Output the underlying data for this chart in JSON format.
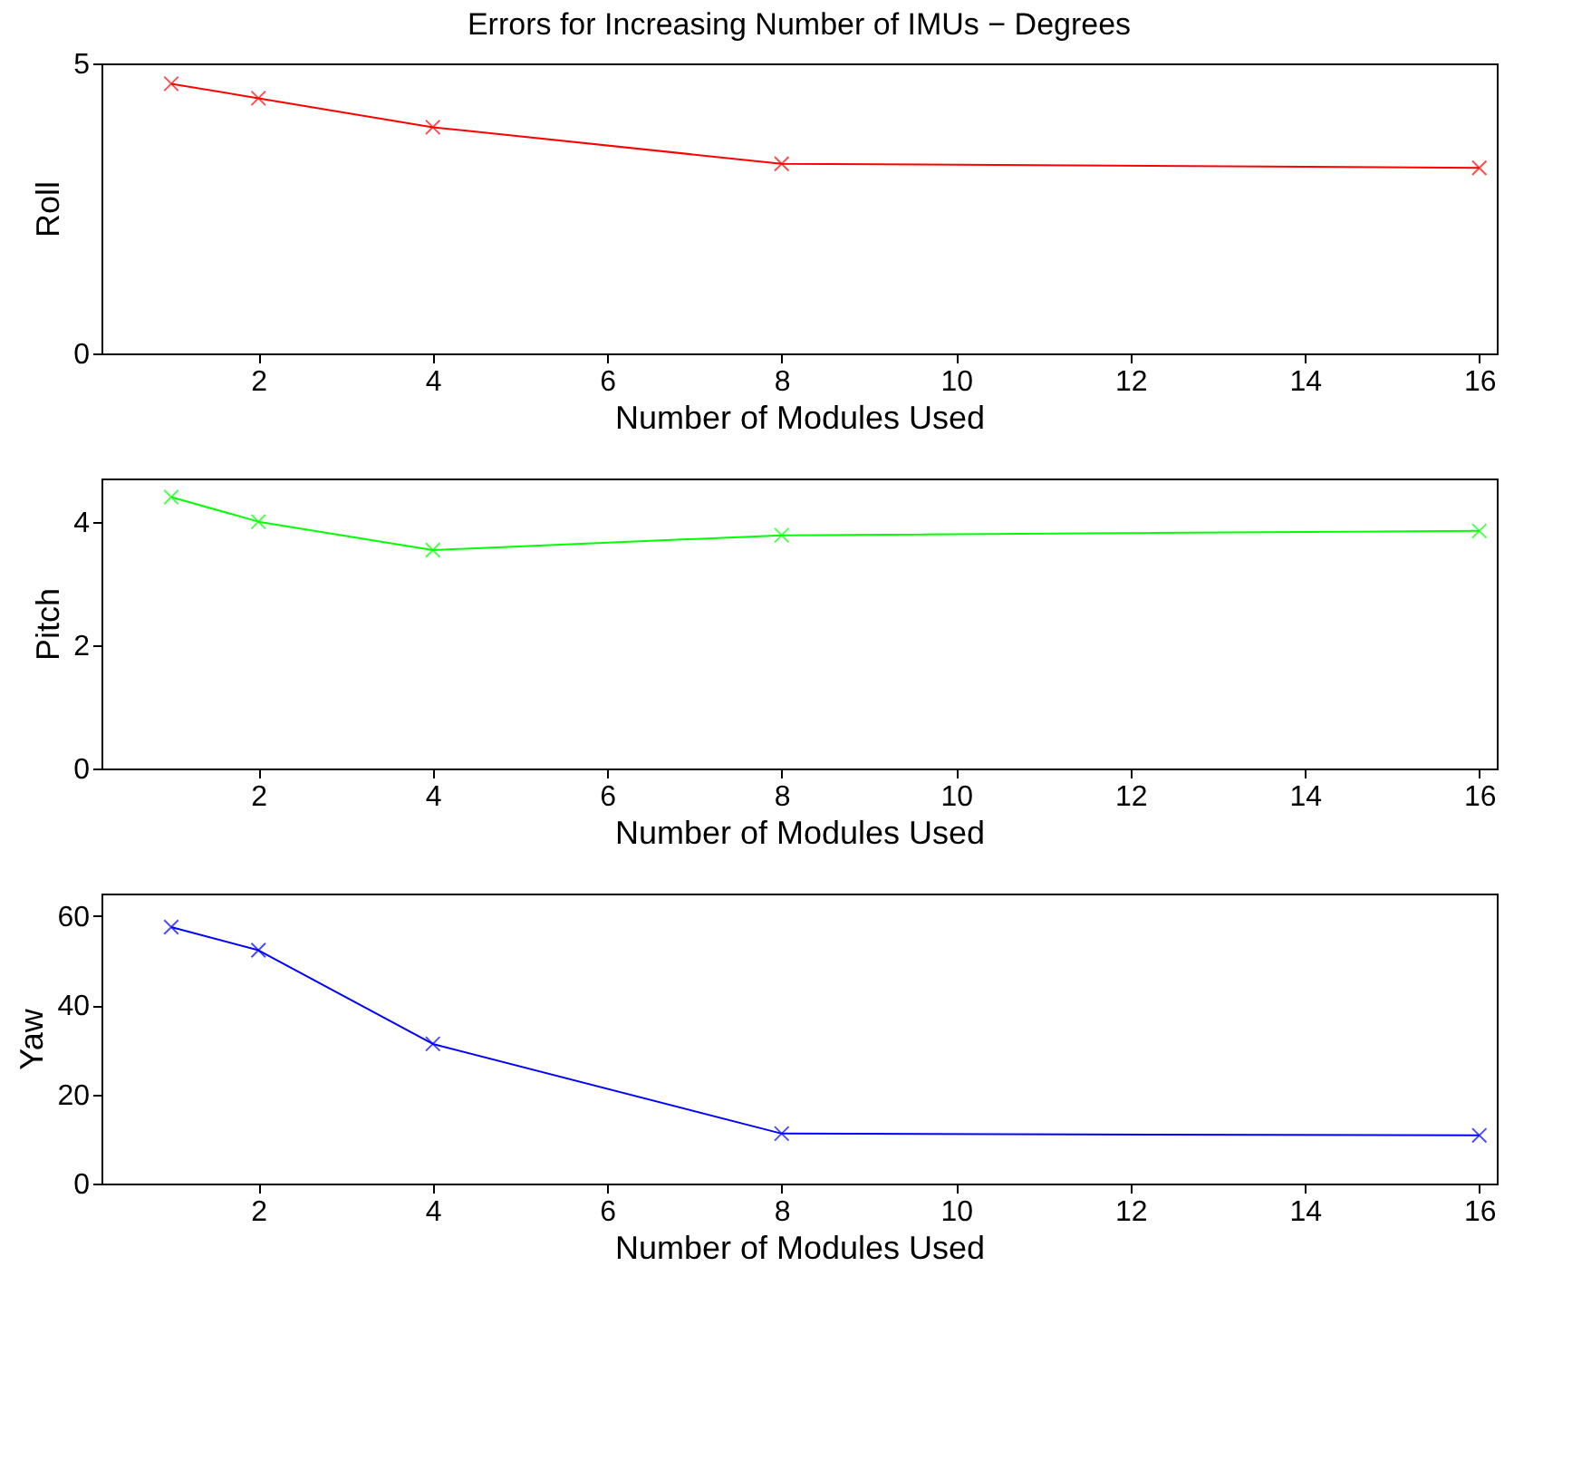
{
  "chart_data": [
    {
      "type": "line",
      "title": "Errors for Increasing Number of IMUs − Degrees",
      "xlabel": "Number of Modules Used",
      "ylabel": "Roll",
      "x": [
        1,
        2,
        4,
        8,
        16
      ],
      "xlim": [
        0.2,
        16.2
      ],
      "xticks": [
        2,
        4,
        6,
        8,
        10,
        12,
        14,
        16
      ],
      "ylim": [
        0,
        5
      ],
      "yticks": [
        0,
        5
      ],
      "grid": false,
      "marker": "cross",
      "series": [
        {
          "color": "#ff0000",
          "values": [
            4.65,
            4.4,
            3.9,
            3.27,
            3.2
          ]
        }
      ]
    },
    {
      "type": "line",
      "xlabel": "Number of Modules Used",
      "ylabel": "Pitch",
      "x": [
        1,
        2,
        4,
        8,
        16
      ],
      "xlim": [
        0.2,
        16.2
      ],
      "xticks": [
        2,
        4,
        6,
        8,
        10,
        12,
        14,
        16
      ],
      "ylim": [
        0,
        4.7
      ],
      "yticks": [
        0,
        2,
        4
      ],
      "grid": false,
      "marker": "cross",
      "series": [
        {
          "color": "#00ff00",
          "values": [
            4.4,
            4.0,
            3.54,
            3.78,
            3.85
          ]
        }
      ]
    },
    {
      "type": "line",
      "xlabel": "Number of Modules Used",
      "ylabel": "Yaw",
      "x": [
        1,
        2,
        4,
        8,
        16
      ],
      "xlim": [
        0.2,
        16.2
      ],
      "xticks": [
        2,
        4,
        6,
        8,
        10,
        12,
        14,
        16
      ],
      "ylim": [
        0,
        65
      ],
      "yticks": [
        0,
        20,
        40,
        60
      ],
      "grid": false,
      "marker": "cross",
      "series": [
        {
          "color": "#0000ff",
          "values": [
            57.5,
            52.3,
            31.3,
            11.2,
            10.8
          ]
        }
      ]
    }
  ]
}
